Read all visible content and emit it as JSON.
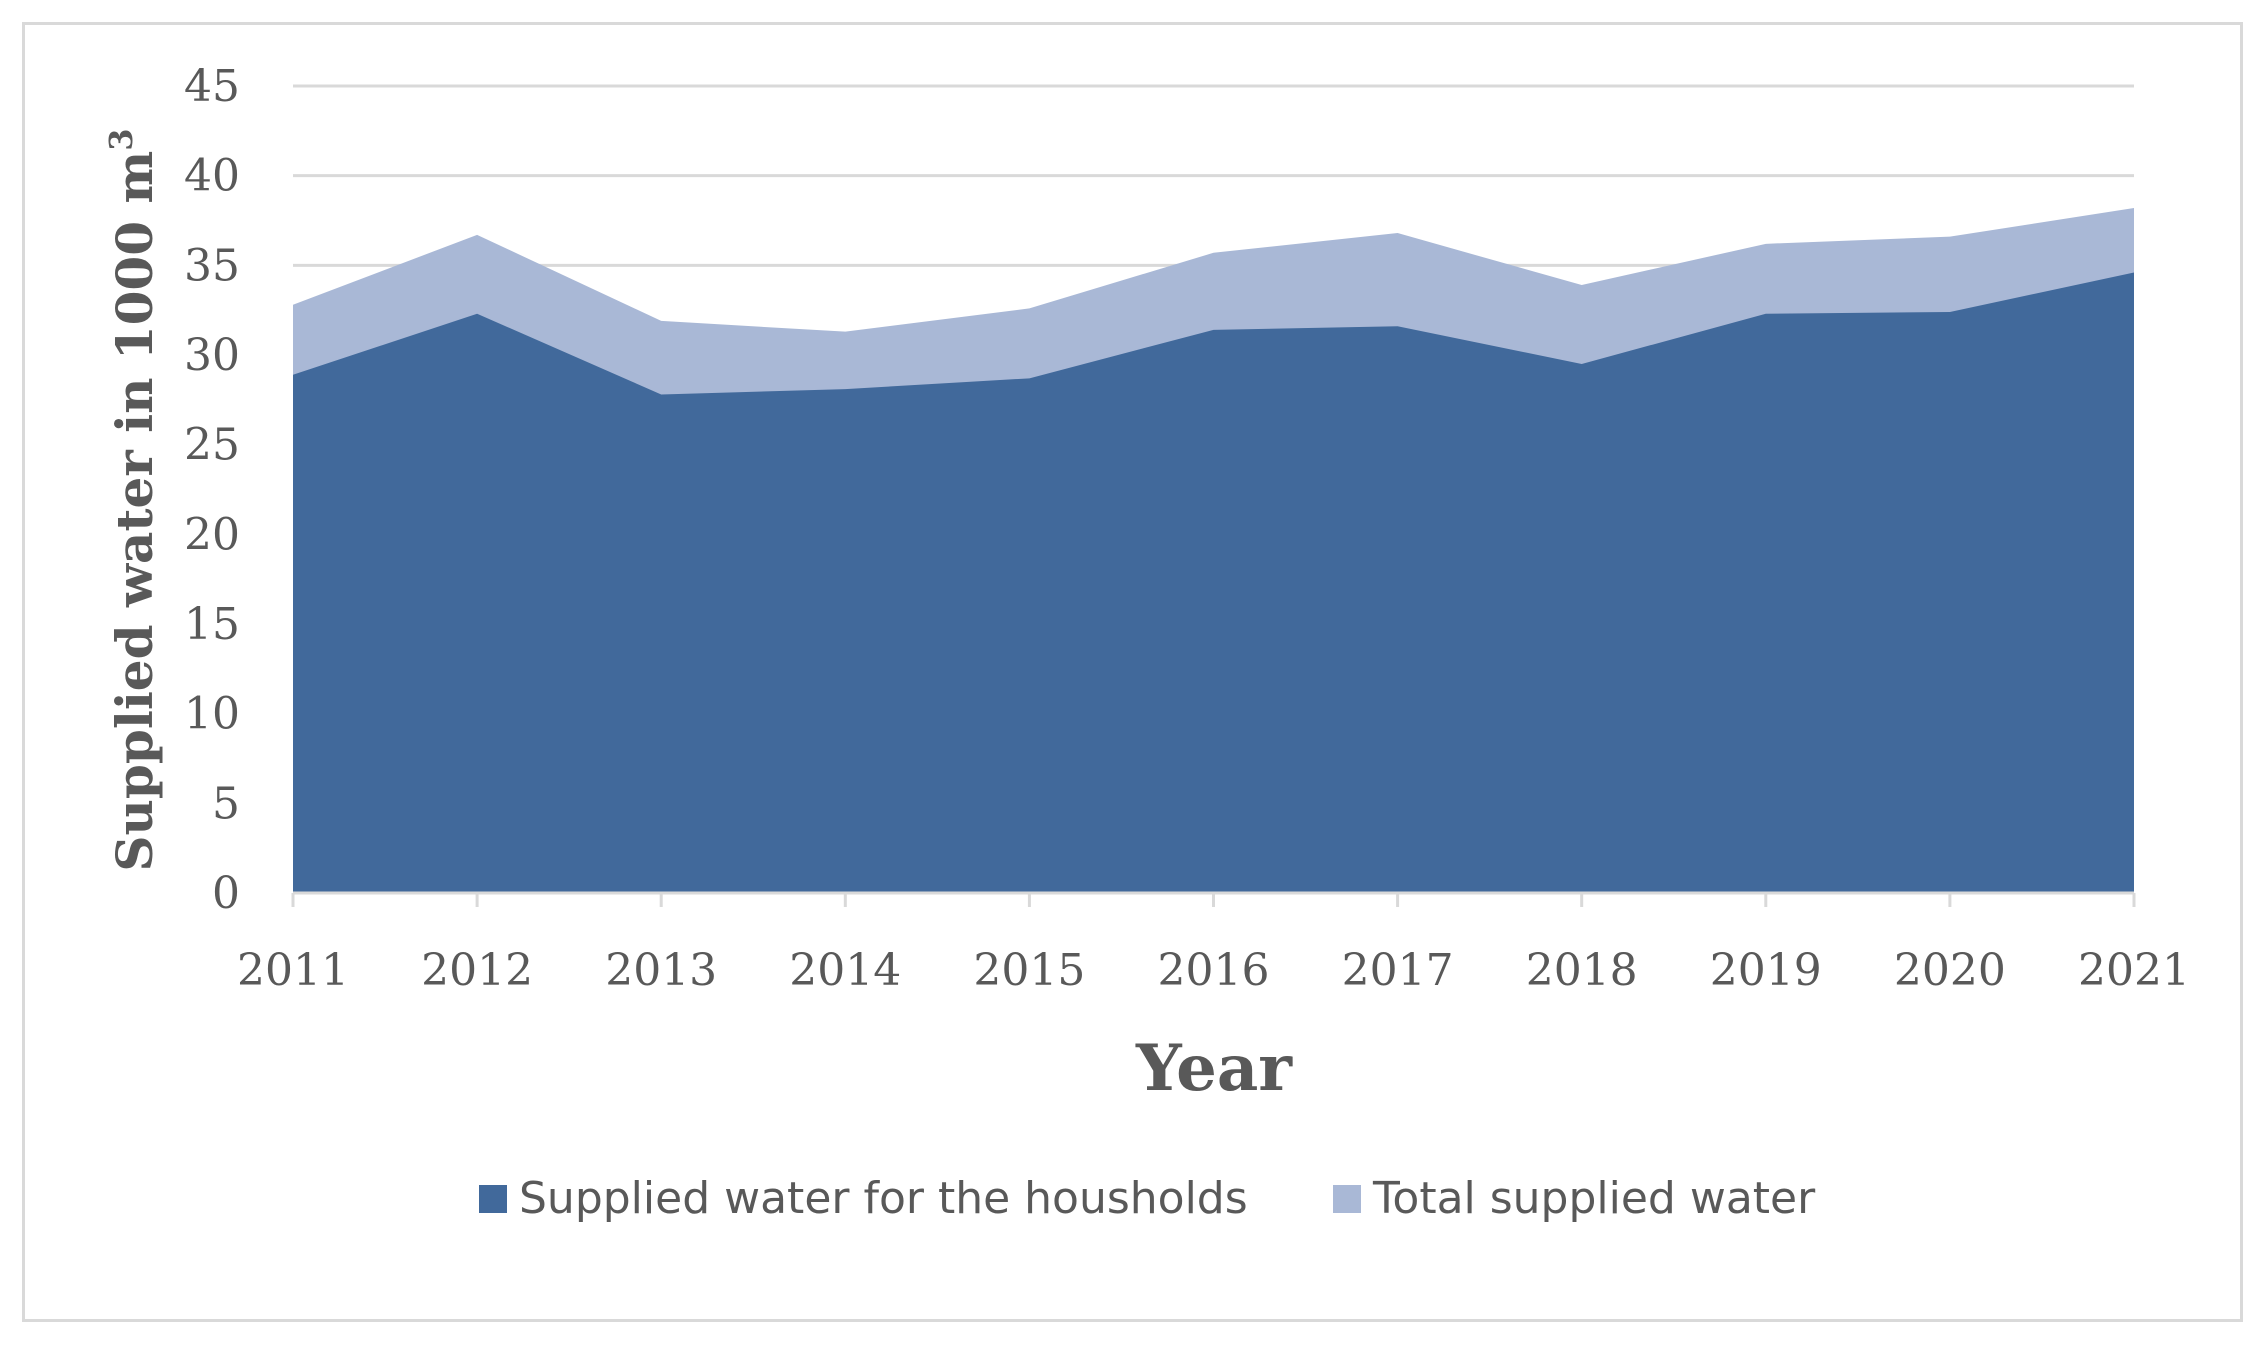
{
  "chart_data": {
    "type": "area",
    "title": "",
    "xlabel": "Year",
    "ylabel": "Supplied water in 1000 m",
    "ylabel_superscript": "3",
    "categories": [
      "2011",
      "2012",
      "2013",
      "2014",
      "2015",
      "2016",
      "2017",
      "2018",
      "2019",
      "2020",
      "2021"
    ],
    "series": [
      {
        "name": "Supplied water for the housholds",
        "color": "#41699b",
        "values": [
          28.9,
          32.3,
          27.8,
          28.1,
          28.7,
          31.4,
          31.6,
          29.5,
          32.3,
          32.4,
          34.6
        ]
      },
      {
        "name": "Total supplied water",
        "color": "#a9b8d6",
        "values": [
          32.8,
          36.7,
          31.9,
          31.3,
          32.6,
          35.7,
          36.8,
          33.9,
          36.2,
          36.6,
          38.2
        ]
      }
    ],
    "ylim": [
      0,
      45
    ],
    "yticks": [
      "0",
      "5",
      "10",
      "15",
      "20",
      "25",
      "30",
      "35",
      "40",
      "45"
    ],
    "grid": true,
    "legend_position": "bottom"
  }
}
